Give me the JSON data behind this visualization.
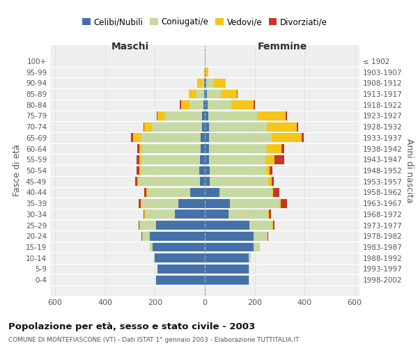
{
  "age_groups": [
    "0-4",
    "5-9",
    "10-14",
    "15-19",
    "20-24",
    "25-29",
    "30-34",
    "35-39",
    "40-44",
    "45-49",
    "50-54",
    "55-59",
    "60-64",
    "65-69",
    "70-74",
    "75-79",
    "80-84",
    "85-89",
    "90-94",
    "95-99",
    "100+"
  ],
  "birth_years": [
    "1998-2002",
    "1993-1997",
    "1988-1992",
    "1983-1987",
    "1978-1982",
    "1973-1977",
    "1968-1972",
    "1963-1967",
    "1958-1962",
    "1953-1957",
    "1948-1952",
    "1943-1947",
    "1938-1942",
    "1933-1937",
    "1928-1932",
    "1923-1927",
    "1918-1922",
    "1913-1917",
    "1908-1912",
    "1903-1907",
    "≤ 1902"
  ],
  "male": {
    "celibe": [
      195,
      190,
      200,
      210,
      220,
      195,
      120,
      105,
      60,
      20,
      22,
      20,
      18,
      18,
      12,
      10,
      6,
      4,
      2,
      0,
      0
    ],
    "coniugato": [
      0,
      0,
      5,
      10,
      30,
      65,
      120,
      150,
      170,
      245,
      235,
      235,
      235,
      240,
      200,
      150,
      55,
      30,
      5,
      0,
      0
    ],
    "vedovo": [
      0,
      0,
      0,
      0,
      2,
      2,
      2,
      3,
      5,
      5,
      6,
      8,
      10,
      30,
      30,
      30,
      35,
      30,
      25,
      2,
      0
    ],
    "divorziato": [
      0,
      0,
      0,
      0,
      2,
      3,
      5,
      8,
      8,
      8,
      10,
      10,
      8,
      8,
      4,
      4,
      5,
      0,
      0,
      0,
      0
    ]
  },
  "female": {
    "nubile": [
      175,
      175,
      175,
      195,
      195,
      180,
      95,
      100,
      60,
      20,
      20,
      18,
      18,
      18,
      18,
      15,
      10,
      8,
      5,
      2,
      0
    ],
    "coniugata": [
      3,
      5,
      10,
      25,
      55,
      90,
      160,
      200,
      210,
      235,
      225,
      225,
      230,
      250,
      230,
      195,
      95,
      55,
      30,
      3,
      0
    ],
    "vedova": [
      0,
      0,
      0,
      0,
      2,
      3,
      3,
      5,
      5,
      12,
      15,
      35,
      60,
      120,
      120,
      115,
      90,
      65,
      50,
      8,
      2
    ],
    "divorziata": [
      0,
      0,
      0,
      0,
      3,
      5,
      8,
      25,
      25,
      10,
      12,
      40,
      10,
      8,
      5,
      4,
      5,
      2,
      0,
      0,
      0
    ]
  },
  "colors": {
    "celibe": "#4472a8",
    "coniugato": "#c5d9a0",
    "vedovo": "#f5c518",
    "divorziato": "#c0392b"
  },
  "title": "Popolazione per età, sesso e stato civile - 2003",
  "subtitle": "COMUNE DI MONTEFIASCONE (VT) - Dati ISTAT 1° gennaio 2003 - Elaborazione TUTTITALIA.IT",
  "xlabel_left": "Maschi",
  "xlabel_right": "Femmine",
  "ylabel_left": "Fasce di età",
  "ylabel_right": "Anni di nascita",
  "xlim": 620,
  "background_color": "#ffffff",
  "plot_bg": "#efefef",
  "grid_color": "#cccccc"
}
